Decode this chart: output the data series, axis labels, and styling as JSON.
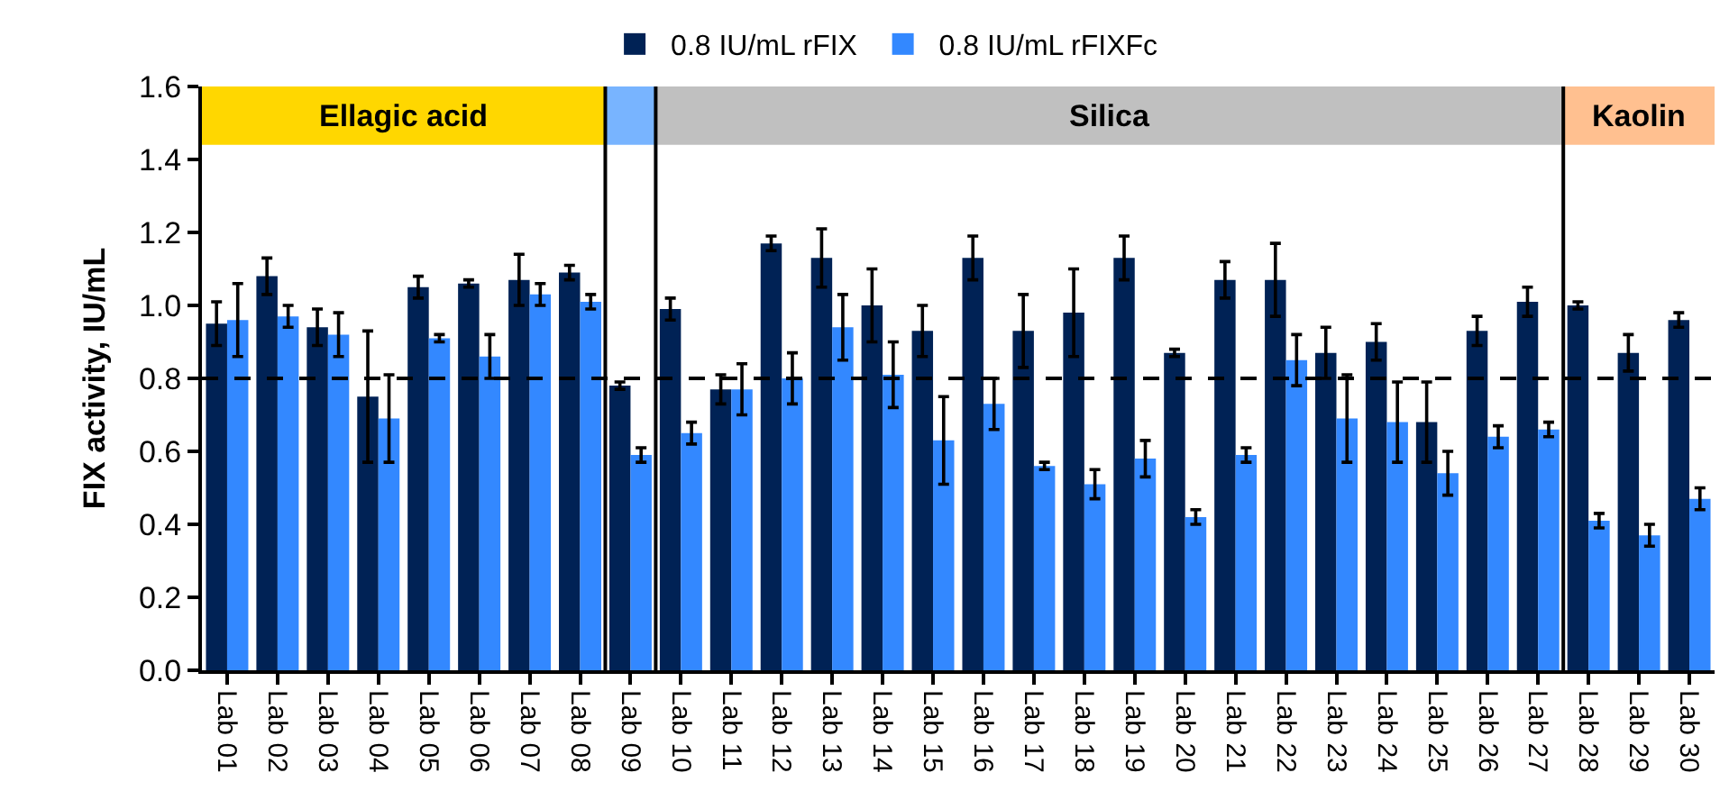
{
  "chart_data": {
    "type": "bar",
    "ylabel": "FIX activity, IU/mL",
    "categories": [
      "Lab 01",
      "Lab 02",
      "Lab 03",
      "Lab 04",
      "Lab 05",
      "Lab 06",
      "Lab 07",
      "Lab 08",
      "Lab 09",
      "Lab 10",
      "Lab 11",
      "Lab 12",
      "Lab 13",
      "Lab 14",
      "Lab 15",
      "Lab 16",
      "Lab 17",
      "Lab 18",
      "Lab 19",
      "Lab 20",
      "Lab 21",
      "Lab 22",
      "Lab 23",
      "Lab 24",
      "Lab 25",
      "Lab 26",
      "Lab 27",
      "Lab 28",
      "Lab 29",
      "Lab 30"
    ],
    "series": [
      {
        "name": "0.8 IU/mL rFIX",
        "color": "#002255",
        "values": [
          0.95,
          1.08,
          0.94,
          0.75,
          1.05,
          1.06,
          1.07,
          1.09,
          0.78,
          0.99,
          0.77,
          1.17,
          1.13,
          1.0,
          0.93,
          1.13,
          0.93,
          0.98,
          1.13,
          0.87,
          1.07,
          1.07,
          0.87,
          0.9,
          0.68,
          0.93,
          1.01,
          1.0,
          0.87,
          0.96
        ],
        "errors": [
          0.06,
          0.05,
          0.05,
          0.18,
          0.03,
          0.01,
          0.07,
          0.02,
          0.01,
          0.03,
          0.04,
          0.02,
          0.08,
          0.1,
          0.07,
          0.06,
          0.1,
          0.12,
          0.06,
          0.01,
          0.05,
          0.1,
          0.07,
          0.05,
          0.11,
          0.04,
          0.04,
          0.01,
          0.05,
          0.02
        ]
      },
      {
        "name": "0.8 IU/mL rFIXFc",
        "color": "#3388ff",
        "values": [
          0.96,
          0.97,
          0.92,
          0.69,
          0.91,
          0.86,
          1.03,
          1.01,
          0.59,
          0.65,
          0.77,
          0.8,
          0.94,
          0.81,
          0.63,
          0.73,
          0.56,
          0.51,
          0.58,
          0.42,
          0.59,
          0.85,
          0.69,
          0.68,
          0.54,
          0.64,
          0.66,
          0.41,
          0.37,
          0.47
        ],
        "errors": [
          0.1,
          0.03,
          0.06,
          0.12,
          0.01,
          0.06,
          0.03,
          0.02,
          0.02,
          0.03,
          0.07,
          0.07,
          0.09,
          0.09,
          0.12,
          0.07,
          0.01,
          0.04,
          0.05,
          0.02,
          0.02,
          0.07,
          0.12,
          0.11,
          0.06,
          0.03,
          0.02,
          0.02,
          0.03,
          0.03
        ]
      }
    ],
    "ylim": [
      0,
      1.6
    ],
    "yticks": [
      {
        "value": 0,
        "label": "0.0"
      },
      {
        "value": 0.2,
        "label": "0.2"
      },
      {
        "value": 0.4,
        "label": "0.4"
      },
      {
        "value": 0.6,
        "label": "0.6"
      },
      {
        "value": 0.8,
        "label": "0.8"
      },
      {
        "value": 1,
        "label": "1.0"
      },
      {
        "value": 1.2,
        "label": "1.2"
      },
      {
        "value": 1.4,
        "label": "1.4"
      },
      {
        "value": 1.6,
        "label": "1.6"
      }
    ],
    "ref_lines": [
      {
        "axis": "y",
        "value": 0.8,
        "line_style": "dashed"
      }
    ],
    "bands": [
      {
        "axis": "x",
        "from": "Lab 01",
        "to": "Lab 08",
        "label": "Ellagic acid",
        "color": "#ffd700"
      },
      {
        "axis": "x",
        "from": "Lab 09",
        "to": "Lab 09",
        "color": "#78b4ff"
      },
      {
        "axis": "x",
        "from": "Lab 10",
        "to": "Lab 27",
        "label": "Silica",
        "color": "#c0c0c0"
      },
      {
        "axis": "x",
        "from": "Lab 28",
        "to": "Lab 30",
        "label": "Kaolin",
        "color": "#ffc090"
      }
    ],
    "grid": false,
    "legend": "top"
  }
}
